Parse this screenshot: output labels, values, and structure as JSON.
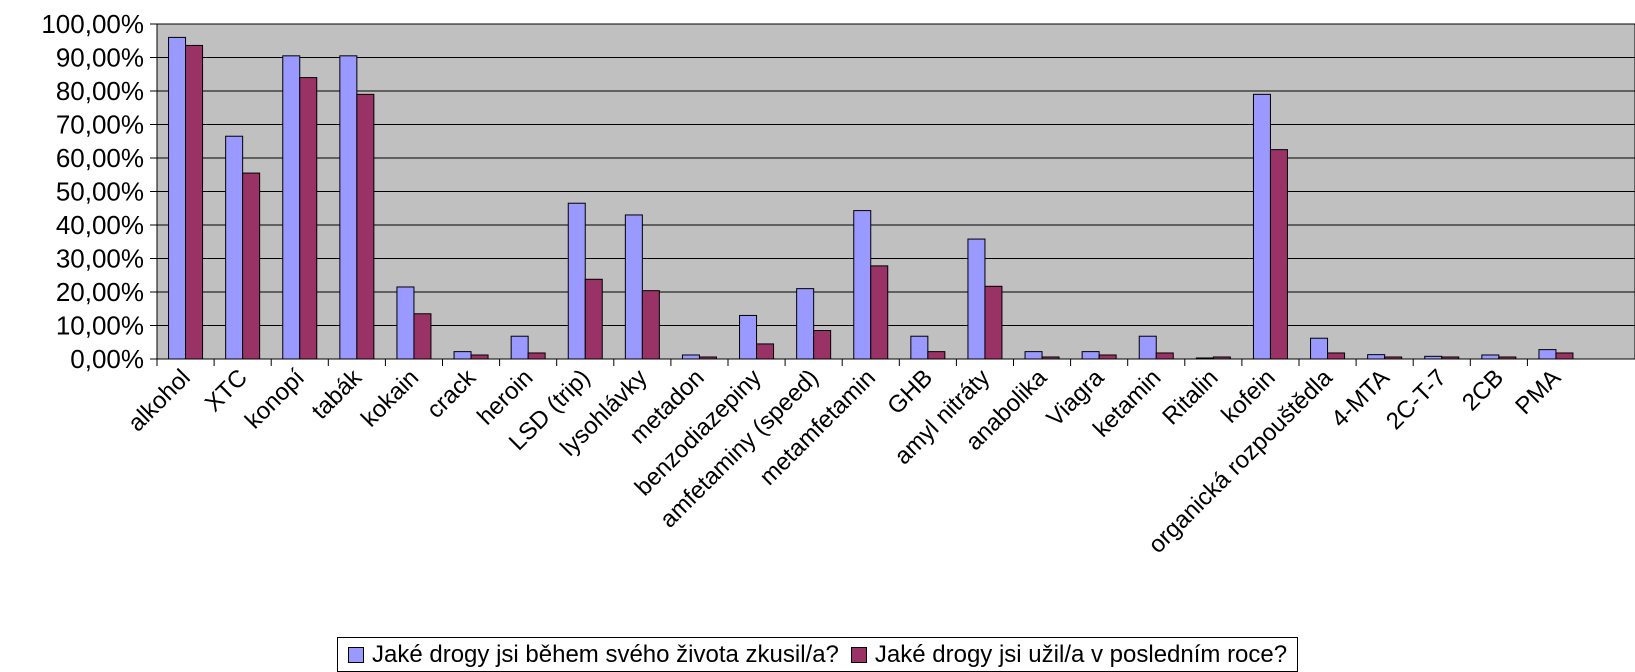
{
  "chart_data": {
    "type": "bar",
    "title": "",
    "xlabel": "",
    "ylabel": "",
    "ylim": [
      0,
      100
    ],
    "y_ticks": [
      "0,00%",
      "10,00%",
      "20,00%",
      "30,00%",
      "40,00%",
      "50,00%",
      "60,00%",
      "70,00%",
      "80,00%",
      "90,00%",
      "100,00%"
    ],
    "grid": true,
    "legend_position": "bottom",
    "categories": [
      "alkohol",
      "XTC",
      "konopí",
      "tabák",
      "kokain",
      "crack",
      "heroin",
      "LSD (trip)",
      "lysohlávky",
      "metadon",
      "benzodiazepiny",
      "amfetaminy (speed)",
      "metamfetamin",
      "GHB",
      "amyl nitráty",
      "anabolika",
      "Viagra",
      "ketamin",
      "Ritalin",
      "kofein",
      "organická rozpouštědla",
      "4-MTA",
      "2C-T-7",
      "2CB",
      "PMA"
    ],
    "series": [
      {
        "name": "Jaké drogy jsi během svého života zkusil/a?",
        "color": "#9999ff",
        "values": [
          96,
          66.5,
          90.5,
          90.5,
          21.5,
          2.2,
          6.8,
          46.5,
          43,
          1.2,
          13,
          21,
          44.3,
          6.8,
          35.8,
          2.2,
          2.2,
          6.8,
          0.3,
          79,
          6.2,
          1.3,
          0.8,
          1.2,
          2.8
        ]
      },
      {
        "name": "Jaké drogy jsi užil/a v posledním roce?",
        "color": "#993366",
        "values": [
          93.6,
          55.5,
          84,
          79,
          13.5,
          1.2,
          1.8,
          23.8,
          20.4,
          0.6,
          4.5,
          8.5,
          27.8,
          2.2,
          21.7,
          0.6,
          1.2,
          1.8,
          0.6,
          62.5,
          1.8,
          0.6,
          0.6,
          0.6,
          1.8
        ]
      }
    ]
  },
  "colors": {
    "plot_background": "#c0c0c0",
    "gridline": "#000000"
  }
}
